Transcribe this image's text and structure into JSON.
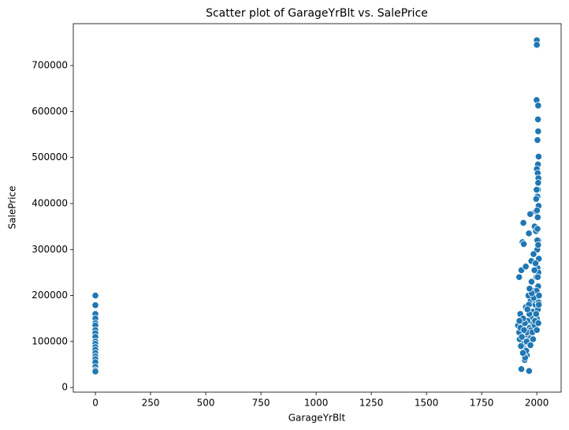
{
  "chart_data": {
    "type": "scatter",
    "title": "Scatter plot of GarageYrBlt vs. SalePrice",
    "x_label": "GarageYrBlt",
    "y_label": "SalePrice",
    "color": "#1f77b4",
    "xlim": [
      -100,
      2110
    ],
    "ylim": [
      -10000,
      791000
    ],
    "xticks": [
      0,
      250,
      500,
      750,
      1000,
      1250,
      1500,
      1750,
      2000
    ],
    "yticks": [
      0,
      100000,
      200000,
      300000,
      400000,
      500000,
      600000,
      700000
    ],
    "x": [
      0,
      0,
      0,
      0,
      0,
      0,
      0,
      0,
      0,
      0,
      0,
      0,
      0,
      0,
      0,
      0,
      0,
      0,
      0,
      0,
      2000,
      2000,
      1999,
      2006,
      2005,
      2006,
      2003,
      2008,
      2005,
      2000,
      2004,
      2007,
      2006,
      2005,
      1999,
      2003,
      1997,
      2008,
      1995,
      1970,
      1939,
      1935,
      1941,
      1964,
      1990,
      2004,
      1996,
      2007,
      2002,
      1985,
      1975,
      1920,
      1930,
      1950,
      1925,
      1915,
      1920,
      1930,
      1965,
      1945,
      1955,
      1940,
      1960,
      1968,
      1978,
      1982,
      1993,
      2001,
      2006,
      1998,
      1988,
      1972,
      1958,
      1948,
      1936,
      1926,
      1922,
      1950,
      1962,
      1976,
      2003,
      2009,
      2007,
      1994,
      1984,
      1974,
      1966,
      1956,
      1946,
      1938,
      1928,
      1952,
      1970,
      1980,
      1990,
      2000,
      2005,
      2008,
      1999,
      1986,
      1964,
      1954,
      1942,
      1932,
      2004,
      2002,
      2006,
      2003,
      2001,
      2009,
      2010,
      1997,
      1992,
      1977,
      1967,
      1957,
      1947,
      1937,
      1921,
      1983,
      1971,
      2000,
      2007,
      1994,
      1989
    ],
    "values": [
      200000,
      179000,
      160000,
      150000,
      140000,
      135000,
      125000,
      118000,
      110000,
      100000,
      95000,
      88000,
      82000,
      75000,
      68000,
      62000,
      55000,
      45000,
      38000,
      35000,
      755000,
      745000,
      625000,
      613000,
      583000,
      557000,
      538000,
      502000,
      485000,
      475000,
      466000,
      455000,
      445000,
      430000,
      430000,
      415000,
      410000,
      395000,
      383000,
      377000,
      358000,
      316000,
      312000,
      335000,
      350000,
      370000,
      340000,
      320000,
      300000,
      290000,
      275000,
      240000,
      255000,
      263000,
      160000,
      135000,
      120000,
      40000,
      36000,
      60000,
      70000,
      85000,
      110000,
      130000,
      150000,
      165000,
      180000,
      200000,
      220000,
      240000,
      210000,
      190000,
      145000,
      115000,
      95000,
      130000,
      105000,
      175000,
      200000,
      230000,
      260000,
      280000,
      250000,
      190000,
      140000,
      125000,
      160000,
      120000,
      140000,
      150000,
      90000,
      80000,
      100000,
      120000,
      135000,
      150000,
      170000,
      185000,
      210000,
      195000,
      180000,
      100000,
      125000,
      110000,
      240000,
      320000,
      310000,
      345000,
      385000,
      180000,
      200000,
      160000,
      145000,
      205000,
      215000,
      170000,
      65000,
      75000,
      145000,
      105000,
      92000,
      125000,
      140000,
      270000,
      255000
    ]
  }
}
